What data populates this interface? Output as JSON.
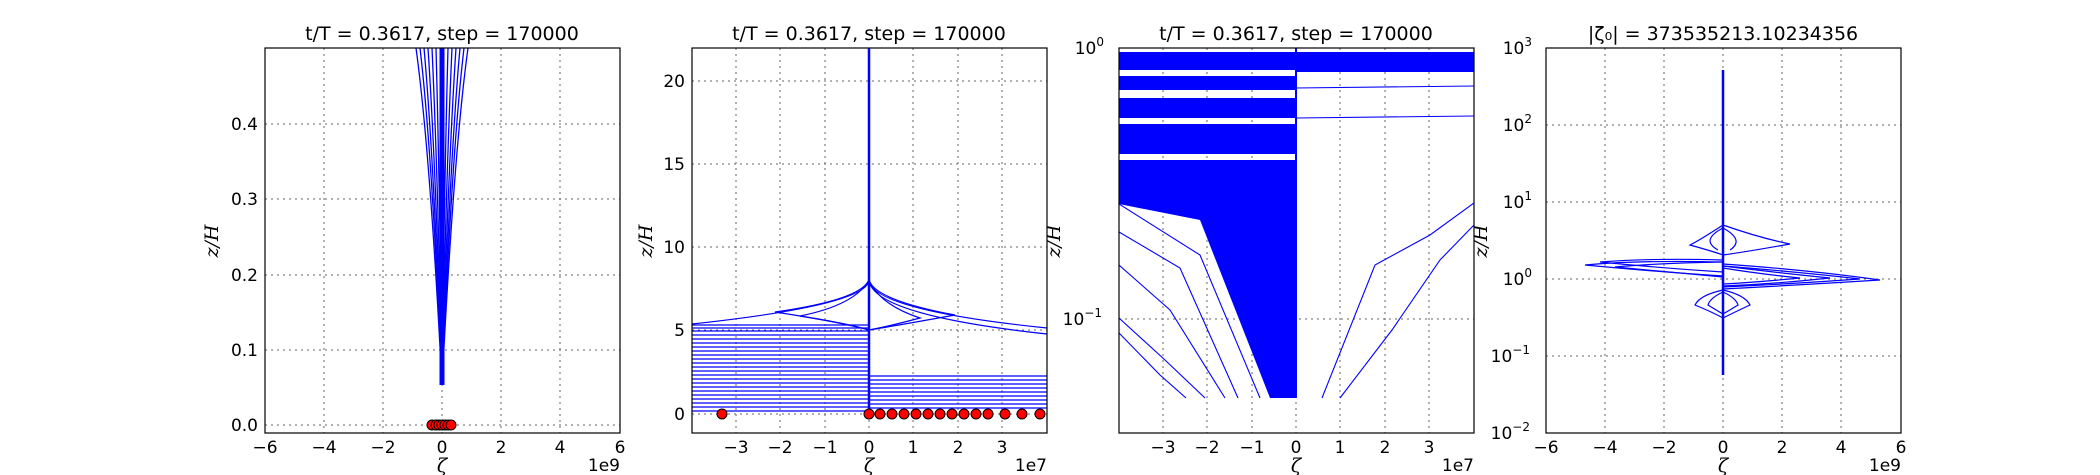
{
  "figure": {
    "titles": [
      "t/T = 0.3617, step = 170000",
      "t/T = 0.3617, step = 170000",
      "t/T = 0.3617, step = 170000",
      "|ζ₀| = 373535213.10234356"
    ],
    "xlabel": "ζ",
    "ylabel": "z/H",
    "x_offsets": [
      "1e9",
      "1e7",
      "1e7",
      "1e9"
    ],
    "line_color": "#0000ff",
    "marker_color": "#ff0000"
  },
  "chart_data": [
    {
      "type": "line",
      "title": "t/T = 0.3617, step = 170000",
      "xlabel": "ζ",
      "ylabel": "z/H",
      "x_multiplier": "1e9",
      "xlim": [
        -6,
        6
      ],
      "ylim": [
        -0.01,
        0.5
      ],
      "x_ticks": [
        "−6",
        "−4",
        "−2",
        "0",
        "2",
        "4",
        "6"
      ],
      "y_ticks": [
        "0.0",
        "0.1",
        "0.2",
        "0.3",
        "0.4"
      ],
      "grid": true,
      "series": [
        {
          "description": "narrow bundle of profiles converging near ζ≈0",
          "x": [
            -0.9,
            -0.7,
            -0.45,
            -0.25,
            -0.1,
            0.0
          ],
          "y": [
            0.5,
            0.44,
            0.38,
            0.3,
            0.18,
            0.05
          ]
        },
        {
          "x": [
            0.9,
            0.6,
            0.35,
            0.2,
            0.08,
            0.0
          ],
          "y": [
            0.5,
            0.45,
            0.38,
            0.3,
            0.18,
            0.05
          ]
        }
      ],
      "markers": {
        "x": [
          -0.35,
          -0.2,
          -0.1,
          0.0,
          0.1,
          0.2,
          0.3
        ],
        "y": [
          0.0,
          0.0,
          0.0,
          0.0,
          0.0,
          0.0,
          0.0
        ]
      }
    },
    {
      "type": "line",
      "title": "t/T = 0.3617, step = 170000",
      "xlabel": "ζ",
      "ylabel": "z/H",
      "x_multiplier": "1e7",
      "xlim": [
        -3.8,
        3.8
      ],
      "ylim": [
        -1,
        22
      ],
      "x_ticks": [
        "−3",
        "−2",
        "−1",
        "0",
        "1",
        "2",
        "3"
      ],
      "y_ticks": [
        "0",
        "5",
        "10",
        "15",
        "20"
      ],
      "grid": true,
      "series": [
        {
          "description": "bulge near z≈6",
          "x": [
            0,
            0.8,
            1.7,
            2.0,
            1.2,
            0.3,
            0
          ],
          "y": [
            8.0,
            7.0,
            6.2,
            5.9,
            5.5,
            5.2,
            5.0
          ]
        },
        {
          "x": [
            0,
            -0.5,
            -1.2,
            -1.8,
            -1.0,
            -0.3,
            0
          ],
          "y": [
            8.0,
            7.2,
            6.5,
            6.0,
            5.6,
            5.3,
            5.0
          ]
        }
      ],
      "markers": {
        "x": [
          -3.3,
          0.0,
          1.0,
          2.0,
          2.7,
          3.1,
          3.4,
          3.7
        ],
        "y": [
          0,
          0,
          0,
          0,
          0,
          0,
          0,
          0
        ]
      }
    },
    {
      "type": "line",
      "title": "t/T = 0.3617, step = 170000",
      "xlabel": "ζ",
      "ylabel": "z/H",
      "x_multiplier": "1e7",
      "xlim": [
        -3.8,
        3.8
      ],
      "ylim": [
        0.04,
        1.0
      ],
      "yscale": "log",
      "x_ticks": [
        "−3",
        "−2",
        "−1",
        "0",
        "1",
        "2",
        "3"
      ],
      "y_ticks": [
        "10⁻¹",
        "10⁰"
      ],
      "grid": true,
      "series": [
        {
          "x": [
            -3.8,
            -2.5,
            -1.2,
            -0.4
          ],
          "y": [
            0.3,
            0.2,
            0.12,
            0.055
          ]
        },
        {
          "x": [
            0.5,
            1.9,
            3.3,
            3.8
          ],
          "y": [
            0.055,
            0.1,
            0.25,
            0.28
          ]
        }
      ]
    },
    {
      "type": "line",
      "title": "|ζ₀| = 373535213.10234356",
      "xlabel": "ζ",
      "ylabel": "z/H",
      "x_multiplier": "1e9",
      "xlim": [
        -6,
        6
      ],
      "ylim": [
        0.01,
        1000
      ],
      "yscale": "log",
      "x_ticks": [
        "−6",
        "−4",
        "−2",
        "0",
        "2",
        "4",
        "6"
      ],
      "y_ticks": [
        "10⁻²",
        "10⁻¹",
        "10⁰",
        "10¹",
        "10²",
        "10³"
      ],
      "grid": true,
      "series": [
        {
          "x": [
            0,
            0
          ],
          "y": [
            0.05,
            500
          ]
        },
        {
          "x": [
            0,
            -4.5,
            0,
            5.5,
            0
          ],
          "y": [
            0.5,
            1.5,
            1.2,
            1.0,
            0.8
          ]
        },
        {
          "x": [
            0,
            -2,
            0,
            2,
            0
          ],
          "y": [
            4,
            3,
            2.5,
            2.0,
            1.8
          ]
        }
      ]
    }
  ]
}
